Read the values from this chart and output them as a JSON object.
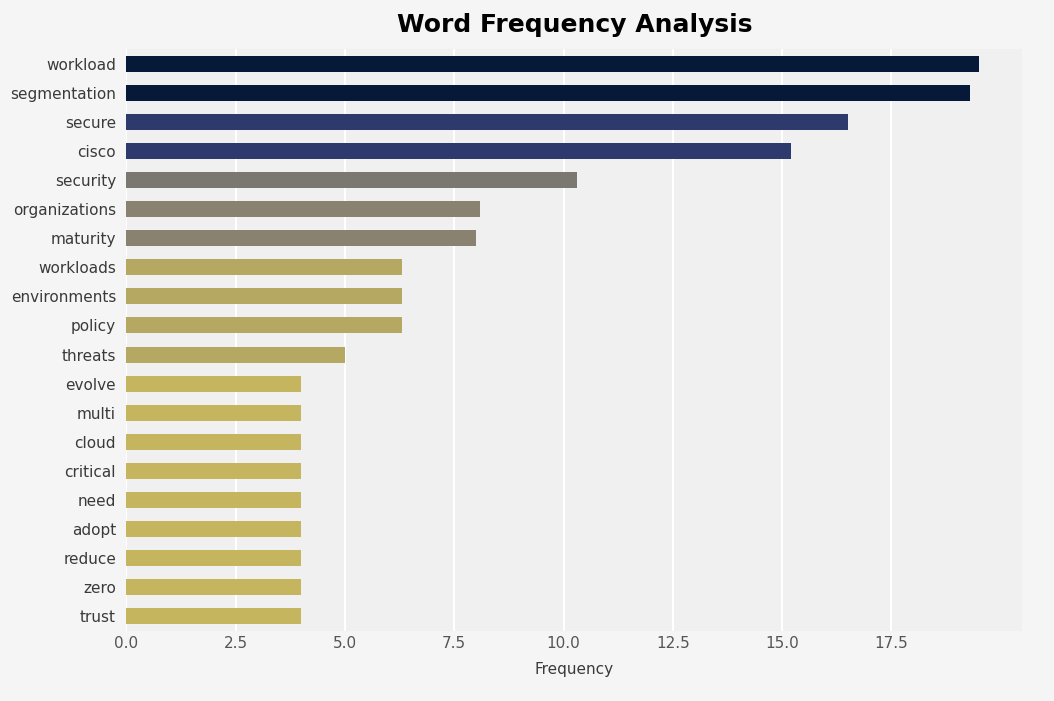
{
  "title": "Word Frequency Analysis",
  "xlabel": "Frequency",
  "categories": [
    "workload",
    "segmentation",
    "secure",
    "cisco",
    "security",
    "organizations",
    "maturity",
    "workloads",
    "environments",
    "policy",
    "threats",
    "evolve",
    "multi",
    "cloud",
    "critical",
    "need",
    "adopt",
    "reduce",
    "zero",
    "trust"
  ],
  "values": [
    19.5,
    19.3,
    16.5,
    15.2,
    10.3,
    8.1,
    8.0,
    6.3,
    6.3,
    6.3,
    5.0,
    4.0,
    4.0,
    4.0,
    4.0,
    4.0,
    4.0,
    4.0,
    4.0,
    4.0
  ],
  "colors": [
    "#071938",
    "#071938",
    "#2d3a6b",
    "#2d3a6b",
    "#7a7870",
    "#8a8270",
    "#8a8270",
    "#b5a862",
    "#b5a862",
    "#b5a862",
    "#b5a862",
    "#c4b55e",
    "#c4b55e",
    "#c4b55e",
    "#c4b55e",
    "#c4b55e",
    "#c4b55e",
    "#c4b55e",
    "#c4b55e",
    "#c4b55e"
  ],
  "background_color": "#f5f5f5",
  "plot_bg_color": "#f0f0f0",
  "xlim": [
    0,
    20.5
  ],
  "title_fontsize": 18,
  "label_fontsize": 11,
  "bar_height": 0.55
}
